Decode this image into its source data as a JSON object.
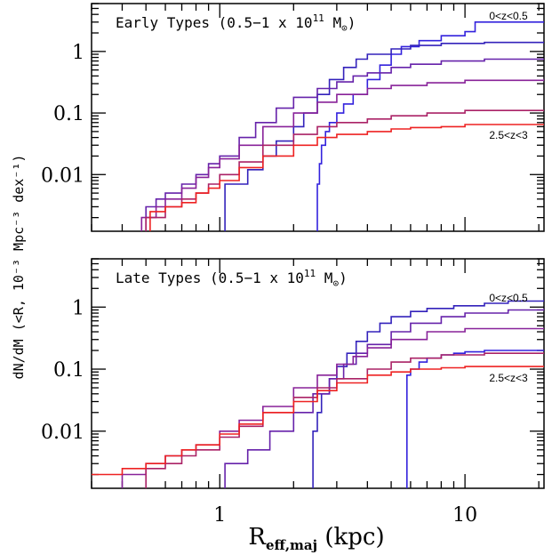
{
  "chart_data": {
    "type": "line",
    "xlabel": "R",
    "xlabel_sub": "eff,maj",
    "xlabel_unit": "(kpc)",
    "ylabel": "dN/dM (<R, 10⁻³ Mpc⁻³ dex⁻¹)",
    "xscale": "log",
    "yscale": "log",
    "xlim": [
      0.3,
      21
    ],
    "ylim": [
      0.0012,
      6
    ],
    "x_ticks": [
      {
        "value": 1,
        "label": "1"
      },
      {
        "value": 10,
        "label": "10"
      }
    ],
    "y_ticks": [
      {
        "value": 0.01,
        "label": "0.01"
      },
      {
        "value": 0.1,
        "label": "0.1"
      },
      {
        "value": 1,
        "label": "1"
      }
    ],
    "panels": [
      {
        "title_prefix": "Early Types",
        "title_range": "(0.5−1 x 10",
        "title_exp": "11",
        "title_unit": " M",
        "title_sun": "⊙",
        "title_close": ")",
        "label_top": "0<z<0.5",
        "label_bottom": "2.5<z<3",
        "series": [
          {
            "color": "#3322dd",
            "x": [
              2.5,
              2.5,
              2.55,
              2.6,
              2.7,
              2.8,
              3.0,
              3.2,
              3.5,
              4.0,
              4.5,
              5.0,
              5.5,
              6.5,
              8.0,
              10.0,
              11.0,
              21.0
            ],
            "y": [
              0.0012,
              0.007,
              0.015,
              0.03,
              0.05,
              0.07,
              0.1,
              0.14,
              0.2,
              0.35,
              0.6,
              0.9,
              1.2,
              1.5,
              1.8,
              2.1,
              3.0,
              3.0
            ]
          },
          {
            "color": "#3322bb",
            "x": [
              1.05,
              1.05,
              1.3,
              1.5,
              1.7,
              2.0,
              2.2,
              2.5,
              2.8,
              3.2,
              3.6,
              4.0,
              5.0,
              6.0,
              8.0,
              12.0,
              21.0
            ],
            "y": [
              0.0012,
              0.007,
              0.012,
              0.02,
              0.035,
              0.06,
              0.1,
              0.2,
              0.35,
              0.55,
              0.75,
              0.9,
              1.1,
              1.25,
              1.35,
              1.4,
              1.4
            ]
          },
          {
            "color": "#6622aa",
            "x": [
              0.5,
              0.5,
              0.55,
              0.6,
              0.7,
              0.8,
              0.9,
              1.0,
              1.2,
              1.4,
              1.7,
              2.0,
              2.5,
              3.0,
              3.5,
              4.0,
              5.0,
              6.0,
              8.0,
              12.0,
              21.0
            ],
            "y": [
              0.0012,
              0.003,
              0.004,
              0.005,
              0.007,
              0.01,
              0.015,
              0.02,
              0.04,
              0.07,
              0.12,
              0.18,
              0.25,
              0.32,
              0.4,
              0.45,
              0.55,
              0.62,
              0.7,
              0.75,
              0.76
            ]
          },
          {
            "color": "#882299",
            "x": [
              0.48,
              0.48,
              0.55,
              0.6,
              0.7,
              0.8,
              0.9,
              1.0,
              1.2,
              1.5,
              2.0,
              2.5,
              3.0,
              4.0,
              5.0,
              7.0,
              10.0,
              21.0
            ],
            "y": [
              0.0012,
              0.002,
              0.003,
              0.004,
              0.006,
              0.009,
              0.013,
              0.018,
              0.03,
              0.06,
              0.1,
              0.15,
              0.2,
              0.25,
              0.28,
              0.31,
              0.34,
              0.36
            ]
          },
          {
            "color": "#aa2266",
            "x": [
              0.5,
              0.5,
              0.6,
              0.7,
              0.8,
              0.9,
              1.0,
              1.2,
              1.5,
              2.0,
              2.5,
              3.0,
              4.0,
              5.0,
              7.0,
              10.0,
              21.0
            ],
            "y": [
              0.0012,
              0.002,
              0.003,
              0.004,
              0.005,
              0.007,
              0.01,
              0.016,
              0.03,
              0.045,
              0.06,
              0.07,
              0.08,
              0.09,
              0.1,
              0.11,
              0.11
            ]
          },
          {
            "color": "#ee2222",
            "x": [
              0.52,
              0.52,
              0.6,
              0.7,
              0.8,
              0.9,
              1.0,
              1.2,
              1.5,
              2.0,
              2.5,
              3.0,
              4.0,
              5.0,
              6.0,
              8.0,
              10.0,
              21.0
            ],
            "y": [
              0.0012,
              0.0025,
              0.003,
              0.0035,
              0.005,
              0.006,
              0.008,
              0.013,
              0.02,
              0.03,
              0.04,
              0.045,
              0.05,
              0.055,
              0.058,
              0.06,
              0.065,
              0.066
            ]
          }
        ]
      },
      {
        "title_prefix": "Late Types",
        "title_range": "(0.5−1 x 10",
        "title_exp": "11",
        "title_unit": " M",
        "title_sun": "⊙",
        "title_close": ")",
        "label_top": "0<z<0.5",
        "label_bottom": "2.5<z<3",
        "series": [
          {
            "color": "#3322dd",
            "x": [
              5.8,
              5.8,
              6.0,
              6.5,
              7.0,
              8.0,
              9.0,
              10.0,
              12.0,
              15.0,
              21.0
            ],
            "y": [
              0.0012,
              0.08,
              0.1,
              0.13,
              0.15,
              0.17,
              0.18,
              0.19,
              0.2,
              0.2,
              0.2
            ]
          },
          {
            "color": "#3322bb",
            "x": [
              2.4,
              2.4,
              2.5,
              2.6,
              2.8,
              3.0,
              3.3,
              3.6,
              4.0,
              4.5,
              5.0,
              6.0,
              7.0,
              9.0,
              12.0,
              15.0,
              21.0
            ],
            "y": [
              0.0012,
              0.01,
              0.02,
              0.04,
              0.07,
              0.11,
              0.18,
              0.28,
              0.4,
              0.55,
              0.7,
              0.85,
              0.95,
              1.05,
              1.15,
              1.25,
              1.3
            ]
          },
          {
            "color": "#6622aa",
            "x": [
              1.05,
              1.05,
              1.3,
              1.6,
              2.0,
              2.4,
              2.8,
              3.2,
              3.6,
              4.0,
              5.0,
              6.0,
              8.0,
              10.0,
              15.0,
              21.0
            ],
            "y": [
              0.0012,
              0.003,
              0.005,
              0.01,
              0.02,
              0.04,
              0.07,
              0.12,
              0.18,
              0.25,
              0.4,
              0.55,
              0.7,
              0.8,
              0.9,
              0.95
            ]
          },
          {
            "color": "#882299",
            "x": [
              0.4,
              0.4,
              0.5,
              0.6,
              0.7,
              0.8,
              1.0,
              1.2,
              1.5,
              2.0,
              2.5,
              3.0,
              3.5,
              4.0,
              5.0,
              7.0,
              10.0,
              21.0
            ],
            "y": [
              0.0012,
              0.002,
              0.003,
              0.004,
              0.005,
              0.006,
              0.01,
              0.015,
              0.025,
              0.05,
              0.08,
              0.12,
              0.16,
              0.22,
              0.3,
              0.4,
              0.45,
              0.46
            ]
          },
          {
            "color": "#aa2266",
            "x": [
              0.5,
              0.5,
              0.6,
              0.7,
              0.8,
              1.0,
              1.2,
              1.5,
              2.0,
              2.5,
              3.0,
              4.0,
              5.0,
              6.0,
              8.0,
              12.0,
              21.0
            ],
            "y": [
              0.0012,
              0.0025,
              0.003,
              0.004,
              0.005,
              0.008,
              0.012,
              0.02,
              0.035,
              0.05,
              0.07,
              0.1,
              0.13,
              0.15,
              0.17,
              0.18,
              0.18
            ]
          },
          {
            "color": "#ee2222",
            "x": [
              0.3,
              0.4,
              0.4,
              0.5,
              0.6,
              0.7,
              0.8,
              1.0,
              1.2,
              1.5,
              2.0,
              2.5,
              3.0,
              4.0,
              5.0,
              6.0,
              8.0,
              10.0,
              21.0
            ],
            "y": [
              0.002,
              0.002,
              0.0025,
              0.003,
              0.004,
              0.005,
              0.006,
              0.009,
              0.013,
              0.02,
              0.03,
              0.045,
              0.06,
              0.08,
              0.09,
              0.1,
              0.105,
              0.11,
              0.11
            ]
          }
        ]
      }
    ]
  }
}
